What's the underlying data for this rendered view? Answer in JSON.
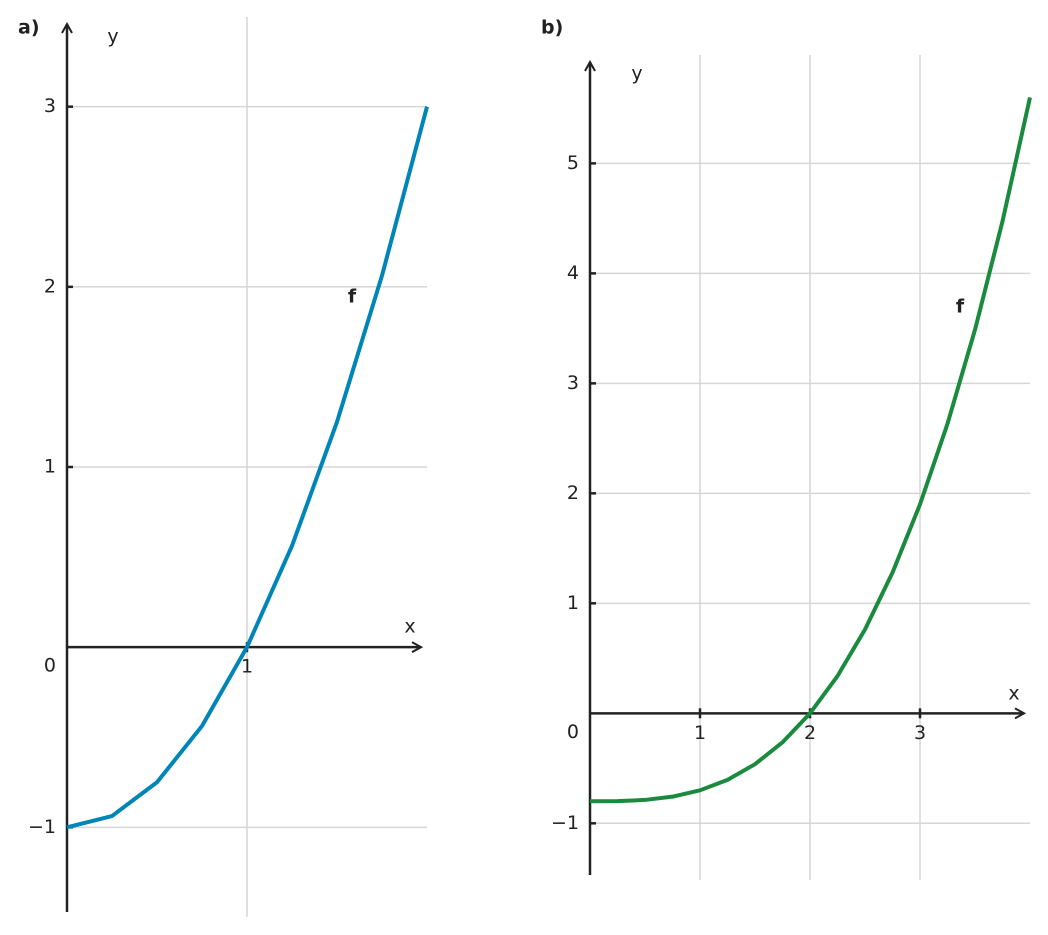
{
  "chart_data": [
    {
      "type": "line",
      "label": "a)",
      "x_label": "x",
      "y_label": "y",
      "x": [
        0,
        0.25,
        0.5,
        0.75,
        1,
        1.25,
        1.5,
        1.75,
        2
      ],
      "series": [
        {
          "name": "f",
          "color": "#0085b8",
          "values": [
            -1,
            -0.9375,
            -0.75,
            -0.4375,
            0,
            0.5625,
            1.25,
            2.0625,
            3
          ]
        }
      ],
      "xlim": [
        0,
        2
      ],
      "ylim": [
        -1.47,
        3.47
      ],
      "xticks": [
        1
      ],
      "yticks": [
        {
          "value": -1,
          "label": "−1"
        },
        0,
        1,
        2,
        3
      ],
      "grid": true
    },
    {
      "type": "line",
      "label": "b)",
      "x_label": "x",
      "y_label": "y",
      "x": [
        0,
        0.25,
        0.5,
        0.75,
        1,
        1.25,
        1.5,
        1.75,
        2,
        2.25,
        2.5,
        2.75,
        3,
        3.25,
        3.5,
        3.75,
        4
      ],
      "series": [
        {
          "name": "f",
          "color": "#1a8a3f",
          "values": [
            -0.8,
            -0.7984375,
            -0.7875,
            -0.7578125,
            -0.7,
            -0.6046875,
            -0.4625,
            -0.2640625,
            0,
            0.3390625,
            0.7625,
            1.2796875,
            1.9,
            2.6328125,
            3.4875,
            4.4734375,
            5.6
          ]
        }
      ],
      "xlim": [
        0,
        4
      ],
      "ylim": [
        -1.47,
        5.94
      ],
      "xticks": [
        1,
        2,
        3
      ],
      "yticks": [
        {
          "value": -1,
          "label": "−1"
        },
        0,
        1,
        2,
        3,
        4,
        5
      ],
      "grid": true
    }
  ]
}
